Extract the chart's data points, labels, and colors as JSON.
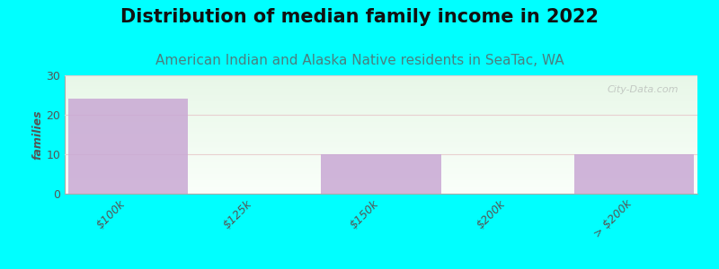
{
  "title": "Distribution of median family income in 2022",
  "subtitle": "American Indian and Alaska Native residents in SeaTac, WA",
  "categories": [
    "$100k",
    "$125k",
    "$150k",
    "$200k",
    "> $200k"
  ],
  "values": [
    24,
    0,
    10,
    0,
    10
  ],
  "bar_color": "#c9a8d4",
  "background_color": "#00FFFF",
  "ylabel": "families",
  "ylim": [
    0,
    30
  ],
  "yticks": [
    0,
    10,
    20,
    30
  ],
  "title_fontsize": 15,
  "subtitle_fontsize": 11,
  "watermark": "City-Data.com",
  "bar_width": 0.95,
  "subtitle_color": "#4a8080",
  "title_color": "#111111",
  "tick_color": "#555555",
  "ylabel_color": "#555555"
}
